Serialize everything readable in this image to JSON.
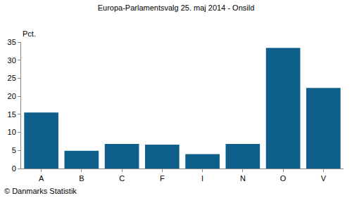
{
  "chart_data": {
    "type": "bar",
    "title": "Europa-Parlamentsvalg 25. maj 2014 - Onsild",
    "ylabel": "Pct.",
    "categories": [
      "A",
      "B",
      "C",
      "F",
      "I",
      "N",
      "O",
      "V"
    ],
    "values": [
      15.5,
      4.9,
      6.8,
      6.6,
      4.0,
      6.8,
      33.4,
      22.3
    ],
    "color": "#0e5f8c",
    "ylim": [
      0,
      35
    ],
    "yticks": [
      0,
      5,
      10,
      15,
      20,
      25,
      30,
      35
    ],
    "grid": false,
    "annotations": [
      "© Danmarks Statistik"
    ]
  }
}
